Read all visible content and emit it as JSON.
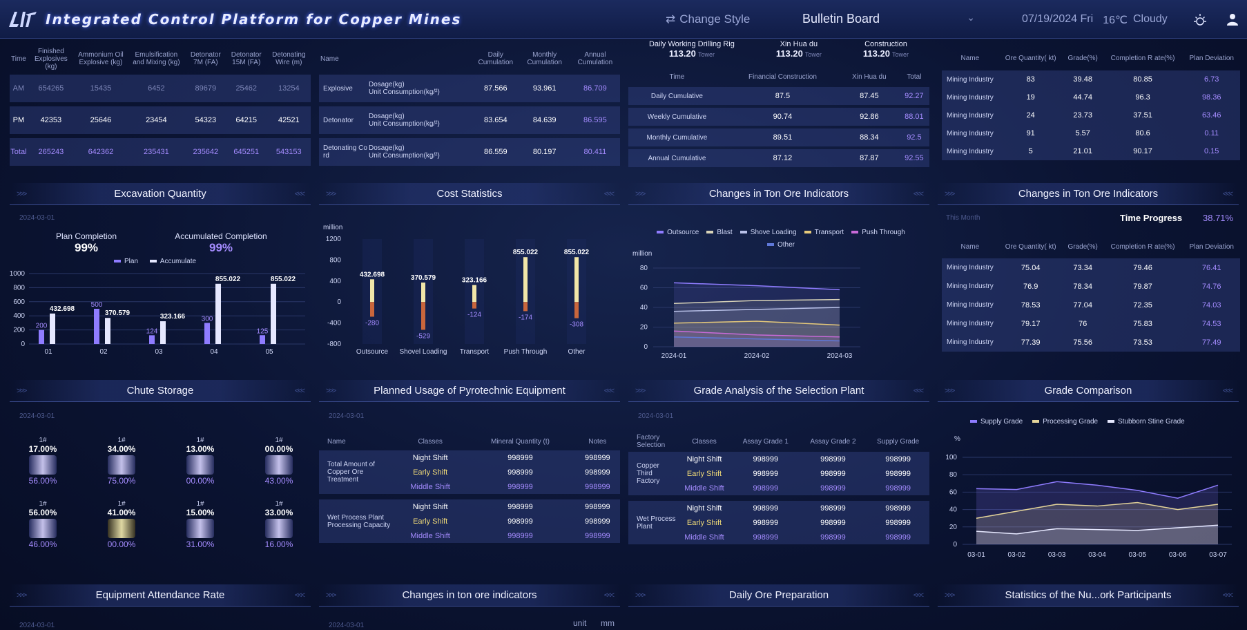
{
  "header": {
    "title": "Integrated Control Platform for Copper Mines",
    "change_style": "Change Style",
    "board": "Bulletin Board",
    "date": "07/19/2024 Fri",
    "temp": "16℃",
    "weather": "Cloudy",
    "icons": [
      "logo-icon",
      "swap-icon",
      "chevron-down-icon",
      "sun-icon",
      "user-icon"
    ]
  },
  "explosives": {
    "headers": [
      "Time",
      "Finished Explosives (kg)",
      "Ammonium Oil Explosive (kg)",
      "Emulsification and Mixing (kg)",
      "Detonator 7M (FA)",
      "Detonator 15M (FA)",
      "Detonating Wire (m)"
    ],
    "rows": [
      [
        "AM",
        "654265",
        "15435",
        "6452",
        "89679",
        "25462",
        "13254"
      ],
      [
        "PM",
        "42353",
        "25646",
        "23454",
        "54323",
        "64215",
        "42521"
      ],
      [
        "Total",
        "265243",
        "642362",
        "235431",
        "235642",
        "645251",
        "543153"
      ]
    ]
  },
  "dosage": {
    "headers": [
      "Name",
      "",
      "Daily Cumulation",
      "Monthly Cumulation",
      "Annual Cumulation"
    ],
    "sub1": "Dosage(kg)",
    "sub2": "Unit Consumption(kg/²)",
    "rows": [
      {
        "name": "Explosive",
        "d": "87.566",
        "m": "93.961",
        "a": "86.709"
      },
      {
        "name": "Detonator",
        "d": "83.654",
        "m": "84.639",
        "a": "86.595"
      },
      {
        "name": "Detonating Co rd",
        "d": "86.559",
        "m": "80.197",
        "a": "80.411"
      }
    ]
  },
  "drilling": {
    "groups": [
      {
        "title": "Daily Working Drilling Rig",
        "value": "113.20",
        "unit": "Tower"
      },
      {
        "title": "Xin Hua du",
        "value": "113.20",
        "unit": "Tower"
      },
      {
        "title": "Construction",
        "value": "113.20",
        "unit": "Tower"
      }
    ],
    "headers": [
      "Time",
      "Financial Construction",
      "Xin Hua du",
      "Total"
    ],
    "rows": [
      [
        "Daily Cumulative",
        "87.5",
        "87.45",
        "92.27"
      ],
      [
        "Weekly Cumulative",
        "90.74",
        "92.86",
        "88.01"
      ],
      [
        "Monthly Cumulative",
        "89.51",
        "88.34",
        "92.5"
      ],
      [
        "Annual Cumulative",
        "87.12",
        "87.87",
        "92.55"
      ]
    ]
  },
  "mining_top": {
    "headers": [
      "Name",
      "Ore Quantity( kt)",
      "Grade(%)",
      "Completion R ate(%)",
      "Plan Deviation"
    ],
    "rows": [
      [
        "Mining Industry",
        "83",
        "39.48",
        "80.85",
        "6.73"
      ],
      [
        "Mining Industry",
        "19",
        "44.74",
        "96.3",
        "98.36"
      ],
      [
        "Mining Industry",
        "24",
        "23.73",
        "37.51",
        "63.46"
      ],
      [
        "Mining Industry",
        "91",
        "5.57",
        "80.6",
        "0.11"
      ],
      [
        "Mining Industry",
        "5",
        "21.01",
        "90.17",
        "0.15"
      ]
    ]
  },
  "titles": {
    "excavation": "Excavation Quantity",
    "cost": "Cost Statistics",
    "ton_ore": "Changes in Ton Ore Indicators",
    "ton_ore2": "Changes in Ton Ore Indicators",
    "chute": "Chute Storage",
    "pyro": "Planned Usage of Pyrotechnic Equipment",
    "grade_analysis": "Grade Analysis of the Selection Plant",
    "grade_comparison": "Grade Comparison",
    "equipment": "Equipment Attendance Rate",
    "ton_ore3": "Changes in ton ore indicators",
    "daily_ore": "Daily Ore Preparation",
    "stats": "Statistics of the Nu...ork Participants"
  },
  "dates": {
    "d1": "2024-03-01",
    "this_month": "This Month",
    "unit": "unit",
    "mm": "mm"
  },
  "excavation": {
    "plan_label": "Plan Completion",
    "plan_value": "99%",
    "acc_label": "Accumulated Completion",
    "acc_value": "99%"
  },
  "time_progress": {
    "label": "Time Progress",
    "value": "38.71%"
  },
  "mining_bottom": {
    "headers": [
      "Name",
      "Ore Quantity( kt)",
      "Grade(%)",
      "Completion R ate(%)",
      "Plan Deviation"
    ],
    "rows": [
      [
        "Mining Industry",
        "75.04",
        "73.34",
        "79.46",
        "76.41"
      ],
      [
        "Mining Industry",
        "76.9",
        "78.34",
        "79.87",
        "74.76"
      ],
      [
        "Mining Industry",
        "78.53",
        "77.04",
        "72.35",
        "74.03"
      ],
      [
        "Mining Industry",
        "79.17",
        "76",
        "75.83",
        "74.53"
      ],
      [
        "Mining Industry",
        "77.39",
        "75.56",
        "73.53",
        "77.49"
      ]
    ]
  },
  "chute": [
    {
      "label": "1#",
      "top": "17.00%",
      "bottom": "56.00%",
      "gold": false
    },
    {
      "label": "1#",
      "top": "34.00%",
      "bottom": "75.00%",
      "gold": false
    },
    {
      "label": "1#",
      "top": "13.00%",
      "bottom": "00.00%",
      "gold": false
    },
    {
      "label": "1#",
      "top": "00.00%",
      "bottom": "43.00%",
      "gold": false
    },
    {
      "label": "1#",
      "top": "56.00%",
      "bottom": "46.00%",
      "gold": false
    },
    {
      "label": "1#",
      "top": "41.00%",
      "bottom": "00.00%",
      "gold": true
    },
    {
      "label": "1#",
      "top": "15.00%",
      "bottom": "31.00%",
      "gold": false
    },
    {
      "label": "1#",
      "top": "33.00%",
      "bottom": "16.00%",
      "gold": false
    }
  ],
  "pyro": {
    "headers": [
      "Name",
      "Classes",
      "Mineral Quantity (t)",
      "Notes"
    ],
    "groups": [
      {
        "name": "Total Amount of Copper Ore Treatment",
        "rows": [
          [
            "Night Shift",
            "998999",
            "998999"
          ],
          [
            "Early Shift",
            "998999",
            "998999"
          ],
          [
            "Middle Shift",
            "998999",
            "998999"
          ]
        ]
      },
      {
        "name": "Wet Process Plant Processing Capacity",
        "rows": [
          [
            "Night Shift",
            "998999",
            "998999"
          ],
          [
            "Early Shift",
            "998999",
            "998999"
          ],
          [
            "Middle Shift",
            "998999",
            "998999"
          ]
        ]
      }
    ]
  },
  "grade_analysis": {
    "headers": [
      "Factory Selection",
      "Classes",
      "Assay Grade 1",
      "Assay Grade 2",
      "Supply Grade"
    ],
    "groups": [
      {
        "name": "Copper Third Factory",
        "rows": [
          [
            "Night Shift",
            "998999",
            "998999",
            "998999"
          ],
          [
            "Early Shift",
            "998999",
            "998999",
            "998999"
          ],
          [
            "Middle Shift",
            "998999",
            "998999",
            "998999"
          ]
        ]
      },
      {
        "name": "Wet Process Plant",
        "rows": [
          [
            "Night Shift",
            "998999",
            "998999",
            "998999"
          ],
          [
            "Early Shift",
            "998999",
            "998999",
            "998999"
          ],
          [
            "Middle Shift",
            "998999",
            "998999",
            "998999"
          ]
        ]
      }
    ]
  },
  "chart_data": [
    {
      "type": "bar",
      "categories": [
        "01",
        "02",
        "03",
        "04",
        "05"
      ],
      "series": [
        {
          "name": "Plan",
          "values": [
            200,
            500,
            124,
            300,
            125
          ]
        },
        {
          "name": "Accumulate",
          "values": [
            432.698,
            370.579,
            323.166,
            855.022,
            855.022
          ]
        }
      ],
      "ylim": [
        0,
        1000
      ],
      "yticks": [
        "0",
        "200",
        "400",
        "600",
        "800",
        "1000"
      ]
    },
    {
      "type": "bar",
      "categories": [
        "Outsource",
        "Shovel Loading",
        "Transport",
        "Push Through",
        "Other"
      ],
      "series": [
        {
          "name": "",
          "values": [
            432.698,
            370.579,
            323.166,
            855.022,
            855.022
          ]
        },
        {
          "name": "",
          "values": [
            -280,
            -529,
            -124,
            -174,
            -308
          ]
        }
      ],
      "ylabel": "million",
      "ylim": [
        -800,
        1200
      ],
      "yticks": [
        "1200",
        "800",
        "400",
        "0",
        "-400",
        "-800"
      ]
    },
    {
      "type": "area",
      "x": [
        "2024-01",
        "2024-02",
        "2024-03"
      ],
      "series": [
        {
          "name": "Outsource",
          "values": [
            65,
            62,
            58
          ]
        },
        {
          "name": "Blast",
          "values": [
            44,
            47,
            48
          ]
        },
        {
          "name": "Shove Loading",
          "values": [
            36,
            38,
            40
          ]
        },
        {
          "name": "Transport",
          "values": [
            24,
            26,
            22
          ]
        },
        {
          "name": "Push Through",
          "values": [
            16,
            12,
            10
          ]
        },
        {
          "name": "Other",
          "values": [
            10,
            8,
            6
          ]
        }
      ],
      "ylabel": "million",
      "ylim": [
        0,
        80
      ],
      "yticks": [
        "0",
        "20",
        "40",
        "60",
        "80"
      ]
    },
    {
      "type": "area",
      "x": [
        "03-01",
        "03-02",
        "03-03",
        "03-04",
        "03-05",
        "03-06",
        "03-07"
      ],
      "series": [
        {
          "name": "Supply Grade",
          "values": [
            64,
            63,
            72,
            68,
            62,
            53,
            68
          ]
        },
        {
          "name": "Processing Grade",
          "values": [
            30,
            38,
            46,
            44,
            48,
            40,
            46
          ]
        },
        {
          "name": "Stubborn Stine Grade",
          "values": [
            15,
            12,
            18,
            17,
            16,
            19,
            22
          ]
        }
      ],
      "ylabel": "%",
      "ylim": [
        0,
        100
      ],
      "yticks": [
        "0",
        "20",
        "40",
        "60",
        "80",
        "100"
      ]
    }
  ],
  "colors": {
    "accent": "#a58cff",
    "gold": "#f2dc78",
    "bg": "#0b1433"
  }
}
